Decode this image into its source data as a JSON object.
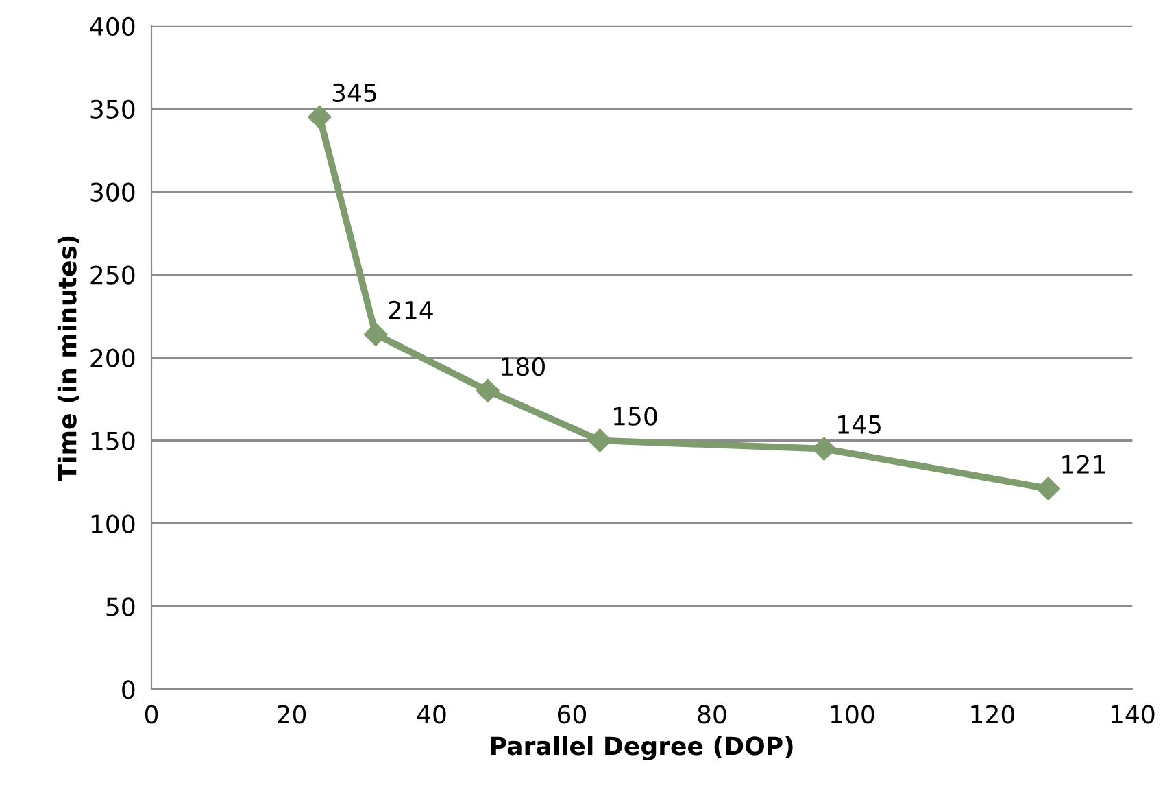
{
  "chart_data": {
    "type": "line",
    "xlabel": "Parallel Degree (DOP)",
    "ylabel": "Time (in minutes)",
    "x": [
      24,
      32,
      48,
      64,
      96,
      128
    ],
    "series": [
      {
        "color": "#7f9c6f",
        "values": [
          345,
          214,
          180,
          150,
          145,
          121
        ]
      }
    ],
    "xlim": [
      0,
      140
    ],
    "xticks": [
      0,
      20,
      40,
      60,
      80,
      100,
      120,
      140
    ],
    "ylim": [
      0,
      400
    ],
    "yticks": [
      0,
      50,
      100,
      150,
      200,
      250,
      300,
      350,
      400
    ],
    "grid": "y",
    "marker": "diamond",
    "line_style": "solid",
    "data_labels": true
  }
}
